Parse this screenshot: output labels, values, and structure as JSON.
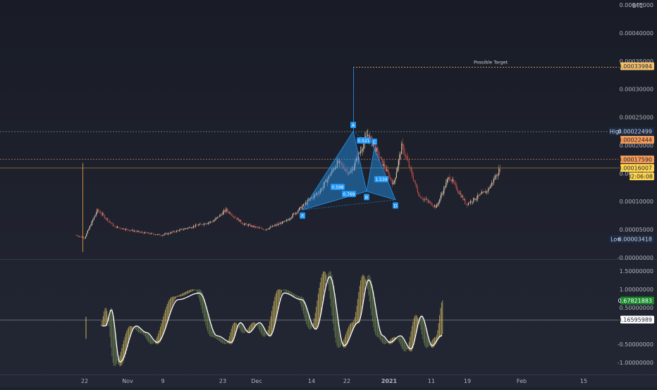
{
  "header": {
    "currency": "BTC"
  },
  "annotations": {
    "target_label": "Possible Target"
  },
  "colors": {
    "background": "#1e222d",
    "candle_up": "#e8d2b4",
    "candle_down": "#c8514a",
    "pattern_fill": "#2196f3",
    "high_low_badge": "#1c2b45",
    "target_tag": "#f5c16c",
    "price_tag_orange": "#f59b57",
    "last_price_tag": "#ffd54f",
    "osc_line": "#ffffff",
    "osc_hist_up": "#c9b35b",
    "osc_hist_down": "#6a7f4d",
    "osc_positive_tag": "#1b8a2b"
  },
  "price_axis": {
    "ticks": [
      "0.00045000",
      "0.00040000",
      "0.00035000",
      "0.00030000",
      "0.00025000",
      "0.00020000",
      "0.00015000",
      "0.00010000",
      "0.00005000",
      "-0.00000000"
    ]
  },
  "price_tags": {
    "high_label": "High",
    "high_value": "0.00022499",
    "low_label": "Low",
    "low_value": "0.00003418",
    "target_value": "0.00033984",
    "level_orange": "0.00022444",
    "level_orange2": "0.00017590",
    "last_price": "0.00016007",
    "countdown": "02:06:08"
  },
  "oscillator_axis": {
    "ticks": [
      "1.50000000",
      "1.00000000",
      "0.50000000",
      "-0.50000000",
      "-1.00000000"
    ],
    "value_tag": "0.67821883",
    "signal_tag": "0.16595989"
  },
  "time_axis": {
    "labels": [
      "22",
      "Nov",
      "9",
      "23",
      "Dec",
      "14",
      "22",
      "2021",
      "11",
      "19",
      "Feb",
      "15"
    ]
  },
  "chart_data": [
    {
      "type": "candlestick",
      "title": "",
      "y_axis": {
        "range": [
          0,
          0.00047
        ],
        "unit": "BTC"
      },
      "pattern": {
        "name": "",
        "points": [
          {
            "label": "X",
            "value": 8.5e-05
          },
          {
            "label": "A",
            "value": 0.00022499
          },
          {
            "label": "B",
            "value": 0.000118
          },
          {
            "label": "C",
            "value": 0.000195
          },
          {
            "label": "D",
            "value": 0.000103
          }
        ],
        "ratios": [
          "0.598",
          "0.769",
          "0.521",
          "1.539"
        ],
        "projection_target": 0.00033984
      },
      "reference_levels": {
        "high": 0.00022499,
        "low": 3.418e-05,
        "target": 0.00033984,
        "level_1": 0.00022444,
        "level_2": 0.0001759,
        "last": 0.00016007
      },
      "series_profile": [
        {
          "date": "2020-10-20",
          "close": 4e-05
        },
        {
          "date": "2020-10-22",
          "close": 3.5e-05
        },
        {
          "date": "2020-10-25",
          "close": 8.5e-05
        },
        {
          "date": "2020-10-29",
          "close": 5.5e-05
        },
        {
          "date": "2020-11-04",
          "close": 4.5e-05
        },
        {
          "date": "2020-11-09",
          "close": 4e-05
        },
        {
          "date": "2020-11-16",
          "close": 5.5e-05
        },
        {
          "date": "2020-11-21",
          "close": 6.5e-05
        },
        {
          "date": "2020-11-24",
          "close": 8.5e-05
        },
        {
          "date": "2020-11-28",
          "close": 6e-05
        },
        {
          "date": "2020-12-03",
          "close": 5e-05
        },
        {
          "date": "2020-12-08",
          "close": 6.5e-05
        },
        {
          "date": "2020-12-13",
          "close": 0.0001
        },
        {
          "date": "2020-12-16",
          "close": 0.00012
        },
        {
          "date": "2020-12-20",
          "close": 0.00017
        },
        {
          "date": "2020-12-23",
          "close": 0.00015
        },
        {
          "date": "2020-12-27",
          "close": 0.00022
        },
        {
          "date": "2021-01-02",
          "close": 0.00013
        },
        {
          "date": "2021-01-04",
          "close": 0.0002
        },
        {
          "date": "2021-01-08",
          "close": 0.00011
        },
        {
          "date": "2021-01-12",
          "close": 9e-05
        },
        {
          "date": "2021-01-15",
          "close": 0.000145
        },
        {
          "date": "2021-01-19",
          "close": 9.5e-05
        },
        {
          "date": "2021-01-24",
          "close": 0.00012
        },
        {
          "date": "2021-01-27",
          "close": 0.00016007
        }
      ]
    },
    {
      "type": "line",
      "title": "",
      "y_axis": {
        "range": [
          -1.2,
          1.65
        ]
      },
      "series": [
        {
          "name": "",
          "role": "main",
          "last_value": 0.67821883
        },
        {
          "name": "",
          "role": "signal",
          "last_value": 0.16595989
        }
      ]
    }
  ]
}
